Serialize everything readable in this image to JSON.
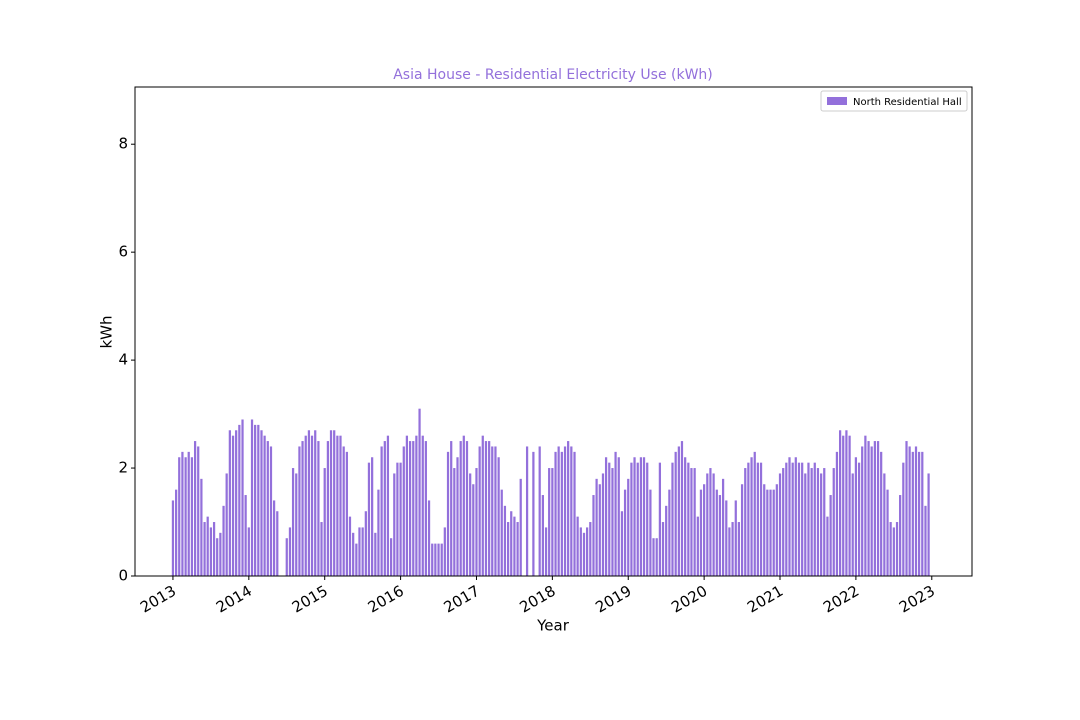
{
  "chart_data": {
    "type": "bar",
    "title": "Asia House - Residential Electricity Use (kWh)",
    "xlabel": "Year",
    "ylabel": "kWh",
    "xlim": [
      2012.5,
      2023.53
    ],
    "ylim": [
      0,
      9.06
    ],
    "xticks": [
      2013,
      2014,
      2015,
      2016,
      2017,
      2018,
      2019,
      2020,
      2021,
      2022,
      2023
    ],
    "yticks": [
      0,
      2,
      4,
      6,
      8
    ],
    "legend": "upper right",
    "grid": false,
    "series": [
      {
        "name": "North Residential Hall",
        "color": "#9370db",
        "x": [
          2013,
          2013.042,
          2013.083,
          2013.125,
          2013.167,
          2013.208,
          2013.25,
          2013.292,
          2013.333,
          2013.375,
          2013.417,
          2013.458,
          2013.5,
          2013.542,
          2013.583,
          2013.625,
          2013.667,
          2013.708,
          2013.75,
          2013.792,
          2013.833,
          2013.875,
          2013.917,
          2013.958,
          2014,
          2014.042,
          2014.083,
          2014.125,
          2014.167,
          2014.208,
          2014.25,
          2014.292,
          2014.333,
          2014.375,
          2014.417,
          2014.458,
          2014.5,
          2014.542,
          2014.583,
          2014.625,
          2014.667,
          2014.708,
          2014.75,
          2014.792,
          2014.833,
          2014.875,
          2014.917,
          2014.958,
          2015,
          2015.042,
          2015.083,
          2015.125,
          2015.167,
          2015.208,
          2015.25,
          2015.292,
          2015.333,
          2015.375,
          2015.417,
          2015.458,
          2015.5,
          2015.542,
          2015.583,
          2015.625,
          2015.667,
          2015.708,
          2015.75,
          2015.792,
          2015.833,
          2015.875,
          2015.917,
          2015.958,
          2016,
          2016.042,
          2016.083,
          2016.125,
          2016.167,
          2016.208,
          2016.25,
          2016.292,
          2016.333,
          2016.375,
          2016.417,
          2016.458,
          2016.5,
          2016.542,
          2016.583,
          2016.625,
          2016.667,
          2016.708,
          2016.75,
          2016.792,
          2016.833,
          2016.875,
          2016.917,
          2016.958,
          2017,
          2017.042,
          2017.083,
          2017.125,
          2017.167,
          2017.208,
          2017.25,
          2017.292,
          2017.333,
          2017.375,
          2017.417,
          2017.458,
          2017.5,
          2017.542,
          2017.583,
          2017.625,
          2017.667,
          2017.708,
          2017.75,
          2017.792,
          2017.833,
          2017.875,
          2017.917,
          2017.958,
          2018,
          2018.042,
          2018.083,
          2018.125,
          2018.167,
          2018.208,
          2018.25,
          2018.292,
          2018.333,
          2018.375,
          2018.417,
          2018.458,
          2018.5,
          2018.542,
          2018.583,
          2018.625,
          2018.667,
          2018.708,
          2018.75,
          2018.792,
          2018.833,
          2018.875,
          2018.917,
          2018.958,
          2019,
          2019.042,
          2019.083,
          2019.125,
          2019.167,
          2019.208,
          2019.25,
          2019.292,
          2019.333,
          2019.375,
          2019.417,
          2019.458,
          2019.5,
          2019.542,
          2019.583,
          2019.625,
          2019.667,
          2019.708,
          2019.75,
          2019.792,
          2019.833,
          2019.875,
          2019.917,
          2019.958,
          2020,
          2020.042,
          2020.083,
          2020.125,
          2020.167,
          2020.208,
          2020.25,
          2020.292,
          2020.333,
          2020.375,
          2020.417,
          2020.458,
          2020.5,
          2020.542,
          2020.583,
          2020.625,
          2020.667,
          2020.708,
          2020.75,
          2020.792,
          2020.833,
          2020.875,
          2020.917,
          2020.958,
          2021,
          2021.042,
          2021.083,
          2021.125,
          2021.167,
          2021.208,
          2021.25,
          2021.292,
          2021.333,
          2021.375,
          2021.417,
          2021.458,
          2021.5,
          2021.542,
          2021.583,
          2021.625,
          2021.667,
          2021.708,
          2021.75,
          2021.792,
          2021.833,
          2021.875,
          2021.917,
          2021.958,
          2022,
          2022.042,
          2022.083,
          2022.125,
          2022.167,
          2022.208,
          2022.25,
          2022.292,
          2022.333,
          2022.375,
          2022.417,
          2022.458,
          2022.5,
          2022.542,
          2022.583,
          2022.625,
          2022.667,
          2022.708,
          2022.75,
          2022.792,
          2022.833,
          2022.875,
          2022.917,
          2022.958
        ],
        "values": [
          1.4,
          1.6,
          2.2,
          2.3,
          2.2,
          2.3,
          2.2,
          2.5,
          2.4,
          1.8,
          1.0,
          1.1,
          0.9,
          1.0,
          0.7,
          0.8,
          1.3,
          1.9,
          2.7,
          2.6,
          2.7,
          2.8,
          2.9,
          1.5,
          0.9,
          2.9,
          2.8,
          2.8,
          2.7,
          2.6,
          2.5,
          2.4,
          1.4,
          1.2,
          0,
          0,
          0.7,
          0.9,
          2.0,
          1.9,
          2.4,
          2.5,
          2.6,
          2.7,
          2.6,
          2.7,
          2.5,
          1.0,
          2.0,
          2.5,
          2.7,
          2.7,
          2.6,
          2.6,
          2.4,
          2.3,
          1.1,
          0.8,
          0.6,
          0.9,
          0.9,
          1.2,
          2.1,
          2.2,
          0.8,
          1.6,
          2.4,
          2.5,
          2.6,
          0.7,
          1.9,
          2.1,
          2.1,
          2.4,
          2.6,
          2.5,
          2.5,
          2.6,
          3.1,
          2.6,
          2.5,
          1.4,
          0.6,
          0.6,
          0.6,
          0.6,
          0.9,
          2.3,
          2.5,
          2.0,
          2.2,
          2.5,
          2.6,
          2.5,
          1.9,
          1.7,
          2.0,
          2.4,
          2.6,
          2.5,
          2.5,
          2.4,
          2.4,
          2.2,
          1.6,
          1.3,
          1.0,
          1.2,
          1.1,
          1.0,
          1.8,
          0,
          2.4,
          0,
          2.3,
          0,
          2.4,
          1.5,
          0.9,
          2.0,
          2.0,
          2.3,
          2.4,
          2.3,
          2.4,
          2.5,
          2.4,
          2.3,
          1.1,
          0.9,
          0.8,
          0.9,
          1.0,
          1.5,
          1.8,
          1.7,
          1.9,
          2.2,
          2.1,
          2.0,
          2.3,
          2.2,
          1.2,
          1.6,
          1.8,
          2.1,
          2.2,
          2.1,
          2.2,
          2.2,
          2.1,
          1.6,
          0.7,
          0.7,
          2.1,
          1.0,
          1.3,
          1.6,
          2.1,
          2.3,
          2.4,
          2.5,
          2.2,
          2.1,
          2.0,
          2.0,
          1.1,
          1.6,
          1.7,
          1.9,
          2.0,
          1.9,
          1.6,
          1.5,
          1.8,
          1.4,
          0.9,
          1.0,
          1.4,
          1.0,
          1.7,
          2.0,
          2.1,
          2.2,
          2.3,
          2.1,
          2.1,
          1.7,
          1.6,
          1.6,
          1.6,
          1.7,
          1.9,
          2.0,
          2.1,
          2.2,
          2.1,
          2.2,
          2.1,
          2.1,
          1.9,
          2.1,
          2.0,
          2.1,
          2.0,
          1.9,
          2.0,
          1.1,
          1.5,
          2.0,
          2.3,
          2.7,
          2.6,
          2.7,
          2.6,
          1.9,
          2.2,
          2.1,
          2.4,
          2.6,
          2.5,
          2.4,
          2.5,
          2.5,
          2.3,
          1.9,
          1.6,
          1.0,
          0.9,
          1.0,
          1.5,
          2.1,
          2.5,
          2.4,
          2.3,
          2.4,
          2.3,
          2.3,
          1.3,
          1.9
        ]
      }
    ]
  }
}
